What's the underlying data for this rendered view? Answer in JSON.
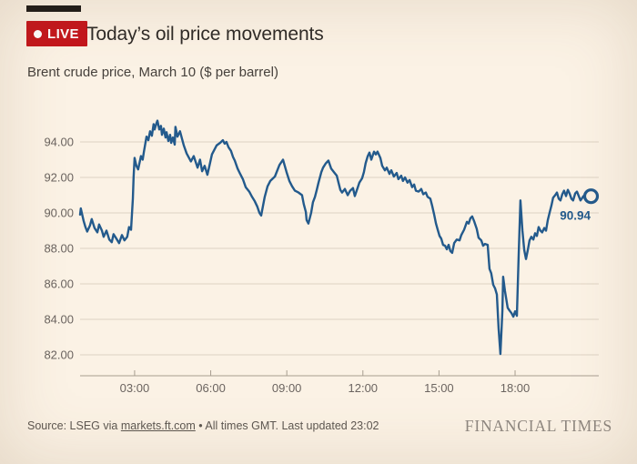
{
  "header": {
    "live_label": "LIVE",
    "title": "Today’s oil price movements",
    "subtitle": "Brent crude price, March 10 ($ per barrel)"
  },
  "footer": {
    "source_prefix": "Source: LSEG via ",
    "source_link": "markets.ft.com",
    "source_suffix": " • All times GMT. Last updated 23:02",
    "brand": "FINANCIAL TIMES"
  },
  "colors": {
    "background": "#fbf2e5",
    "accent_red": "#c4161c",
    "line_blue": "#235a8c",
    "gridline": "#ded3c4",
    "axis": "#a79d90",
    "axis_text": "#6b6460",
    "title_text": "#2f2b28"
  },
  "chart_data": {
    "type": "line",
    "title": "Today’s oil price movements",
    "subtitle": "Brent crude price, March 10 ($ per barrel)",
    "unit": "$ per barrel",
    "grid": "horizontal",
    "legend": "none",
    "x_tick_labels": [
      "03:00",
      "06:00",
      "09:00",
      "12:00",
      "15:00",
      "18:00"
    ],
    "x_tick_hours": [
      3,
      6,
      9,
      12,
      15,
      18
    ],
    "y_ticks": [
      82,
      84,
      86,
      88,
      90,
      92,
      94
    ],
    "y_tick_labels": [
      "82.00",
      "84.00",
      "86.00",
      "88.00",
      "90.00",
      "92.00",
      "94.00"
    ],
    "xlim_hours": [
      0.85,
      21.3
    ],
    "ylim": [
      80.8,
      95.55
    ],
    "last_value": 90.94,
    "last_value_label": "90.94",
    "points": [
      [
        0.85,
        89.9
      ],
      [
        0.88,
        90.25
      ],
      [
        0.99,
        89.55
      ],
      [
        1.06,
        89.2
      ],
      [
        1.13,
        88.95
      ],
      [
        1.24,
        89.3
      ],
      [
        1.31,
        89.65
      ],
      [
        1.42,
        89.15
      ],
      [
        1.53,
        88.9
      ],
      [
        1.6,
        89.35
      ],
      [
        1.71,
        89.0
      ],
      [
        1.78,
        88.65
      ],
      [
        1.89,
        89.0
      ],
      [
        2.0,
        88.5
      ],
      [
        2.1,
        88.35
      ],
      [
        2.17,
        88.8
      ],
      [
        2.28,
        88.55
      ],
      [
        2.39,
        88.3
      ],
      [
        2.5,
        88.75
      ],
      [
        2.6,
        88.45
      ],
      [
        2.71,
        88.65
      ],
      [
        2.78,
        89.2
      ],
      [
        2.86,
        89.05
      ],
      [
        2.93,
        90.8
      ],
      [
        2.96,
        92.0
      ],
      [
        3.0,
        93.1
      ],
      [
        3.07,
        92.65
      ],
      [
        3.14,
        92.45
      ],
      [
        3.25,
        93.2
      ],
      [
        3.32,
        93.0
      ],
      [
        3.36,
        93.4
      ],
      [
        3.47,
        94.3
      ],
      [
        3.54,
        94.1
      ],
      [
        3.61,
        94.6
      ],
      [
        3.68,
        94.35
      ],
      [
        3.75,
        95.0
      ],
      [
        3.79,
        94.7
      ],
      [
        3.86,
        95.05
      ],
      [
        3.9,
        95.2
      ],
      [
        3.97,
        94.7
      ],
      [
        4.04,
        94.9
      ],
      [
        4.08,
        94.4
      ],
      [
        4.15,
        94.75
      ],
      [
        4.22,
        94.25
      ],
      [
        4.26,
        94.55
      ],
      [
        4.33,
        94.05
      ],
      [
        4.4,
        94.4
      ],
      [
        4.44,
        93.95
      ],
      [
        4.51,
        94.25
      ],
      [
        4.58,
        93.85
      ],
      [
        4.61,
        94.85
      ],
      [
        4.69,
        94.3
      ],
      [
        4.79,
        94.6
      ],
      [
        4.94,
        93.8
      ],
      [
        5.05,
        93.35
      ],
      [
        5.22,
        92.9
      ],
      [
        5.33,
        93.2
      ],
      [
        5.48,
        92.55
      ],
      [
        5.58,
        93.0
      ],
      [
        5.66,
        92.35
      ],
      [
        5.76,
        92.65
      ],
      [
        5.87,
        92.15
      ],
      [
        5.94,
        92.6
      ],
      [
        6.05,
        93.3
      ],
      [
        6.23,
        93.8
      ],
      [
        6.37,
        93.95
      ],
      [
        6.48,
        94.1
      ],
      [
        6.55,
        93.9
      ],
      [
        6.62,
        94.0
      ],
      [
        6.7,
        93.7
      ],
      [
        6.8,
        93.5
      ],
      [
        6.88,
        93.15
      ],
      [
        6.95,
        92.95
      ],
      [
        7.06,
        92.5
      ],
      [
        7.16,
        92.2
      ],
      [
        7.27,
        91.9
      ],
      [
        7.38,
        91.45
      ],
      [
        7.52,
        91.2
      ],
      [
        7.63,
        90.9
      ],
      [
        7.74,
        90.65
      ],
      [
        7.84,
        90.35
      ],
      [
        7.92,
        90.0
      ],
      [
        7.99,
        89.85
      ],
      [
        8.13,
        90.9
      ],
      [
        8.24,
        91.5
      ],
      [
        8.35,
        91.8
      ],
      [
        8.53,
        92.05
      ],
      [
        8.71,
        92.7
      ],
      [
        8.85,
        93.0
      ],
      [
        8.99,
        92.3
      ],
      [
        9.1,
        91.8
      ],
      [
        9.21,
        91.5
      ],
      [
        9.32,
        91.25
      ],
      [
        9.46,
        91.15
      ],
      [
        9.6,
        91.0
      ],
      [
        9.67,
        90.5
      ],
      [
        9.75,
        90.05
      ],
      [
        9.78,
        89.6
      ],
      [
        9.85,
        89.4
      ],
      [
        9.96,
        90.0
      ],
      [
        10.03,
        90.6
      ],
      [
        10.11,
        90.9
      ],
      [
        10.18,
        91.3
      ],
      [
        10.25,
        91.7
      ],
      [
        10.36,
        92.3
      ],
      [
        10.43,
        92.55
      ],
      [
        10.54,
        92.8
      ],
      [
        10.64,
        92.95
      ],
      [
        10.75,
        92.5
      ],
      [
        10.86,
        92.3
      ],
      [
        10.97,
        92.1
      ],
      [
        11.04,
        91.7
      ],
      [
        11.11,
        91.3
      ],
      [
        11.18,
        91.15
      ],
      [
        11.29,
        91.35
      ],
      [
        11.4,
        91.0
      ],
      [
        11.5,
        91.25
      ],
      [
        11.61,
        91.4
      ],
      [
        11.68,
        90.95
      ],
      [
        11.79,
        91.4
      ],
      [
        11.86,
        91.7
      ],
      [
        11.97,
        91.95
      ],
      [
        12.04,
        92.3
      ],
      [
        12.11,
        92.8
      ],
      [
        12.19,
        93.2
      ],
      [
        12.26,
        93.4
      ],
      [
        12.33,
        93.0
      ],
      [
        12.44,
        93.45
      ],
      [
        12.51,
        93.3
      ],
      [
        12.58,
        93.45
      ],
      [
        12.69,
        93.1
      ],
      [
        12.76,
        92.65
      ],
      [
        12.87,
        92.4
      ],
      [
        12.94,
        92.55
      ],
      [
        13.05,
        92.2
      ],
      [
        13.12,
        92.4
      ],
      [
        13.22,
        92.05
      ],
      [
        13.33,
        92.25
      ],
      [
        13.4,
        91.9
      ],
      [
        13.51,
        92.1
      ],
      [
        13.58,
        91.8
      ],
      [
        13.66,
        92.0
      ],
      [
        13.76,
        91.7
      ],
      [
        13.84,
        91.85
      ],
      [
        13.94,
        91.45
      ],
      [
        14.02,
        91.6
      ],
      [
        14.09,
        91.25
      ],
      [
        14.2,
        91.2
      ],
      [
        14.3,
        91.35
      ],
      [
        14.38,
        91.05
      ],
      [
        14.48,
        91.15
      ],
      [
        14.55,
        90.9
      ],
      [
        14.66,
        90.8
      ],
      [
        14.73,
        90.4
      ],
      [
        14.81,
        89.9
      ],
      [
        14.88,
        89.4
      ],
      [
        14.95,
        89.05
      ],
      [
        15.02,
        88.7
      ],
      [
        15.09,
        88.55
      ],
      [
        15.16,
        88.2
      ],
      [
        15.24,
        88.15
      ],
      [
        15.31,
        87.95
      ],
      [
        15.38,
        88.2
      ],
      [
        15.45,
        87.85
      ],
      [
        15.52,
        87.75
      ],
      [
        15.6,
        88.3
      ],
      [
        15.7,
        88.5
      ],
      [
        15.81,
        88.45
      ],
      [
        15.88,
        88.75
      ],
      [
        15.99,
        89.05
      ],
      [
        16.1,
        89.5
      ],
      [
        16.17,
        89.4
      ],
      [
        16.24,
        89.7
      ],
      [
        16.31,
        89.8
      ],
      [
        16.38,
        89.55
      ],
      [
        16.49,
        89.1
      ],
      [
        16.56,
        88.6
      ],
      [
        16.67,
        88.45
      ],
      [
        16.74,
        88.15
      ],
      [
        16.81,
        88.25
      ],
      [
        16.92,
        88.2
      ],
      [
        16.99,
        86.85
      ],
      [
        17.06,
        86.6
      ],
      [
        17.14,
        85.95
      ],
      [
        17.21,
        85.75
      ],
      [
        17.28,
        85.4
      ],
      [
        17.35,
        83.5
      ],
      [
        17.42,
        82.05
      ],
      [
        17.5,
        84.5
      ],
      [
        17.53,
        86.4
      ],
      [
        17.6,
        85.6
      ],
      [
        17.68,
        84.9
      ],
      [
        17.71,
        84.65
      ],
      [
        17.78,
        84.5
      ],
      [
        17.86,
        84.35
      ],
      [
        17.93,
        84.15
      ],
      [
        18.0,
        84.45
      ],
      [
        18.07,
        84.2
      ],
      [
        18.14,
        87.5
      ],
      [
        18.21,
        90.7
      ],
      [
        18.29,
        89.0
      ],
      [
        18.36,
        87.9
      ],
      [
        18.43,
        87.4
      ],
      [
        18.5,
        87.9
      ],
      [
        18.57,
        88.45
      ],
      [
        18.64,
        88.65
      ],
      [
        18.72,
        88.5
      ],
      [
        18.79,
        88.85
      ],
      [
        18.86,
        88.7
      ],
      [
        18.93,
        89.2
      ],
      [
        19.0,
        89.0
      ],
      [
        19.07,
        88.9
      ],
      [
        19.15,
        89.15
      ],
      [
        19.22,
        89.0
      ],
      [
        19.29,
        89.6
      ],
      [
        19.36,
        90.0
      ],
      [
        19.43,
        90.4
      ],
      [
        19.5,
        90.85
      ],
      [
        19.58,
        91.0
      ],
      [
        19.65,
        91.15
      ],
      [
        19.72,
        90.8
      ],
      [
        19.79,
        90.7
      ],
      [
        19.86,
        91.05
      ],
      [
        19.93,
        91.25
      ],
      [
        20.01,
        90.95
      ],
      [
        20.08,
        91.3
      ],
      [
        20.15,
        91.1
      ],
      [
        20.22,
        90.8
      ],
      [
        20.29,
        90.7
      ],
      [
        20.37,
        91.1
      ],
      [
        20.44,
        91.2
      ],
      [
        20.51,
        90.95
      ],
      [
        20.58,
        90.7
      ],
      [
        20.65,
        90.85
      ],
      [
        20.69,
        90.94
      ]
    ]
  }
}
